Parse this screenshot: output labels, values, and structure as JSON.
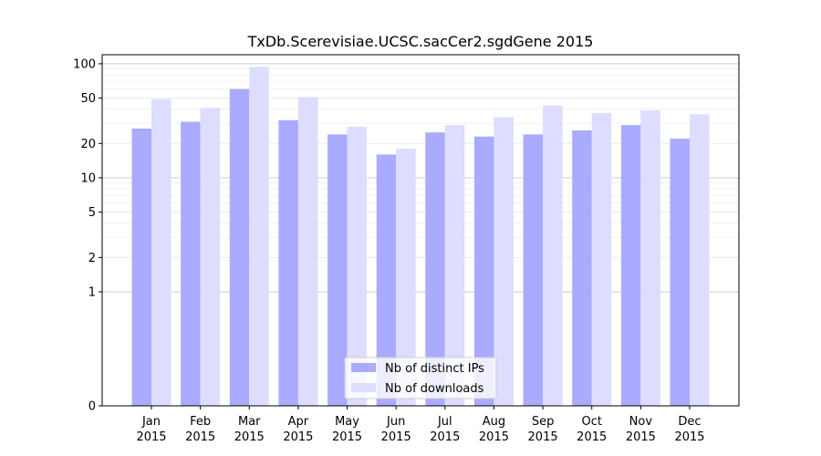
{
  "chart_data": {
    "type": "bar",
    "title": "TxDb.Scerevisiae.UCSC.sacCer2.sgdGene 2015",
    "xlabel": "",
    "ylabel": "",
    "y_scale": "symlog",
    "y_ticks": [
      0,
      1,
      2,
      5,
      10,
      20,
      50,
      100
    ],
    "ylim": [
      0,
      120
    ],
    "grid": true,
    "legend_position": "bottom-center",
    "categories": [
      [
        "Jan",
        "2015"
      ],
      [
        "Feb",
        "2015"
      ],
      [
        "Mar",
        "2015"
      ],
      [
        "Apr",
        "2015"
      ],
      [
        "May",
        "2015"
      ],
      [
        "Jun",
        "2015"
      ],
      [
        "Jul",
        "2015"
      ],
      [
        "Aug",
        "2015"
      ],
      [
        "Sep",
        "2015"
      ],
      [
        "Oct",
        "2015"
      ],
      [
        "Nov",
        "2015"
      ],
      [
        "Dec",
        "2015"
      ]
    ],
    "series": [
      {
        "name": "Nb of distinct IPs",
        "color": "#aaaaff",
        "values": [
          27,
          31,
          60,
          32,
          24,
          16,
          25,
          23,
          24,
          26,
          29,
          22
        ]
      },
      {
        "name": "Nb of downloads",
        "color": "#ddddff",
        "values": [
          49,
          41,
          94,
          51,
          28,
          18,
          29,
          34,
          43,
          37,
          39,
          36
        ]
      }
    ]
  }
}
